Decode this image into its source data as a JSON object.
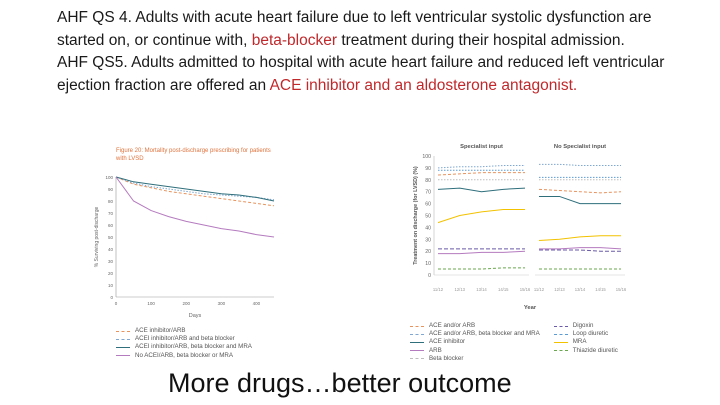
{
  "text": {
    "qs4_a": "AHF QS 4. Adults with acute heart failure due to left ventricular systolic dysfunction are started on, or continue with, ",
    "qs4_red": "beta‑blocker",
    "qs4_b": " treatment during their hospital admission.",
    "qs5_a": "AHF QS5. Adults admitted to hospital with acute heart failure and reduced left ventricular ejection fraction are offered an ",
    "qs5_red": "ACE inhibitor and an aldosterone antagonist.",
    "caption": "More drugs…better outcome"
  },
  "colors": {
    "red": "#c0282b",
    "orange_title": "#e0733d"
  },
  "left_chart": {
    "title": "Figure 20: Mortality post-discharge prescribing for patients with LVSD",
    "xlabel": "Days",
    "ylabel": "% Surviving post-discharge",
    "x_ticks": [
      "0",
      "100",
      "200",
      "300",
      "400"
    ],
    "y_ticks": [
      "0",
      "10",
      "20",
      "30",
      "40",
      "50",
      "60",
      "70",
      "80",
      "90",
      "100"
    ],
    "legend": [
      "ACE inhibitor/ARB",
      "ACEI inhibitor/ARB and beta blocker",
      "ACEI inhibitor/ARB, beta blocker and MRA",
      "No ACEI/ARB, beta blocker or MRA"
    ]
  },
  "chart_data": [
    {
      "type": "line",
      "title": "Figure 20: Mortality post-discharge prescribing for patients with LVSD",
      "xlabel": "Days",
      "ylabel": "% Surviving post-discharge",
      "xlim": [
        0,
        450
      ],
      "ylim": [
        0,
        100
      ],
      "x": [
        0,
        50,
        100,
        150,
        200,
        250,
        300,
        350,
        400,
        450
      ],
      "series": [
        {
          "name": "ACE inhibitor/ARB",
          "color": "#e8935e",
          "dash": "3,2",
          "values": [
            100,
            94,
            91,
            88,
            86,
            84,
            82,
            80,
            78,
            76
          ]
        },
        {
          "name": "ACEI inhibitor/ARB and beta blocker",
          "color": "#7fa7d1",
          "dash": "1.5,1.5",
          "values": [
            100,
            95,
            92,
            90,
            88,
            86,
            85,
            84,
            83,
            81
          ]
        },
        {
          "name": "ACEI inhibitor/ARB, beta blocker and MRA",
          "color": "#2f6f7c",
          "dash": "",
          "values": [
            100,
            96,
            94,
            92,
            90,
            88,
            86,
            85,
            83,
            80
          ]
        },
        {
          "name": "No ACEI/ARB, beta blocker or MRA",
          "color": "#b57bbf",
          "dash": "",
          "values": [
            100,
            80,
            72,
            67,
            63,
            60,
            57,
            55,
            52,
            50
          ]
        }
      ]
    },
    {
      "type": "line",
      "title": "",
      "ylabel": "Treatment on discharge (for LVSD) (%)",
      "xlabel": "Year",
      "panels": [
        "Specialist input",
        "No Specialist input"
      ],
      "categories": [
        "11/12",
        "12/13",
        "13/14",
        "14/15",
        "15/16"
      ],
      "y_ticks": [
        "0",
        "10",
        "20",
        "30",
        "40",
        "50",
        "60",
        "70",
        "80",
        "90",
        "100"
      ],
      "ylim": [
        0,
        100
      ],
      "series": [
        {
          "name": "ACE and/or ARB",
          "color": "#e8935e",
          "dash": "3,2",
          "specialist": [
            84,
            85,
            86,
            86,
            86
          ],
          "no_specialist": [
            72,
            71,
            70,
            69,
            70
          ]
        },
        {
          "name": "ACE and/or ARB, beta blocker and MRA",
          "color": "#7fa7d1",
          "dash": "1.5,1.5",
          "specialist": [
            90,
            91,
            91,
            92,
            92
          ],
          "no_specialist": [
            93,
            93,
            92,
            92,
            92
          ]
        },
        {
          "name": "ACE inhibitor",
          "color": "#2f6f7c",
          "dash": "",
          "specialist": [
            72,
            73,
            70,
            72,
            73
          ],
          "no_specialist": [
            66,
            66,
            60,
            60,
            60
          ]
        },
        {
          "name": "ARB",
          "color": "#b57bbf",
          "dash": "",
          "specialist": [
            18,
            18,
            19,
            19,
            20
          ],
          "no_specialist": [
            22,
            22,
            23,
            23,
            22
          ]
        },
        {
          "name": "Beta blocker",
          "color": "#bdbdbd",
          "dash": "1.5,1.5",
          "specialist": [
            80,
            80,
            80,
            80,
            80
          ],
          "no_specialist": [
            80,
            80,
            80,
            80,
            80
          ]
        },
        {
          "name": "Digoxin",
          "color": "#6a5aa8",
          "dash": "4,2",
          "specialist": [
            22,
            22,
            22,
            22,
            22
          ],
          "no_specialist": [
            21,
            21,
            21,
            20,
            20
          ]
        },
        {
          "name": "Loop diuretic",
          "color": "#5b9bd5",
          "dash": "1.5,1.5",
          "specialist": [
            88,
            88,
            88,
            88,
            88
          ],
          "no_specialist": [
            82,
            82,
            82,
            82,
            82
          ]
        },
        {
          "name": "MRA",
          "color": "#f2c200",
          "dash": "",
          "specialist": [
            44,
            50,
            53,
            55,
            55
          ],
          "no_specialist": [
            29,
            30,
            32,
            33,
            33
          ]
        },
        {
          "name": "Thiazide diuretic",
          "color": "#6aa84f",
          "dash": "3,2",
          "specialist": [
            5,
            5,
            5,
            6,
            6
          ],
          "no_specialist": [
            5,
            5,
            5,
            5,
            5
          ]
        }
      ]
    }
  ]
}
